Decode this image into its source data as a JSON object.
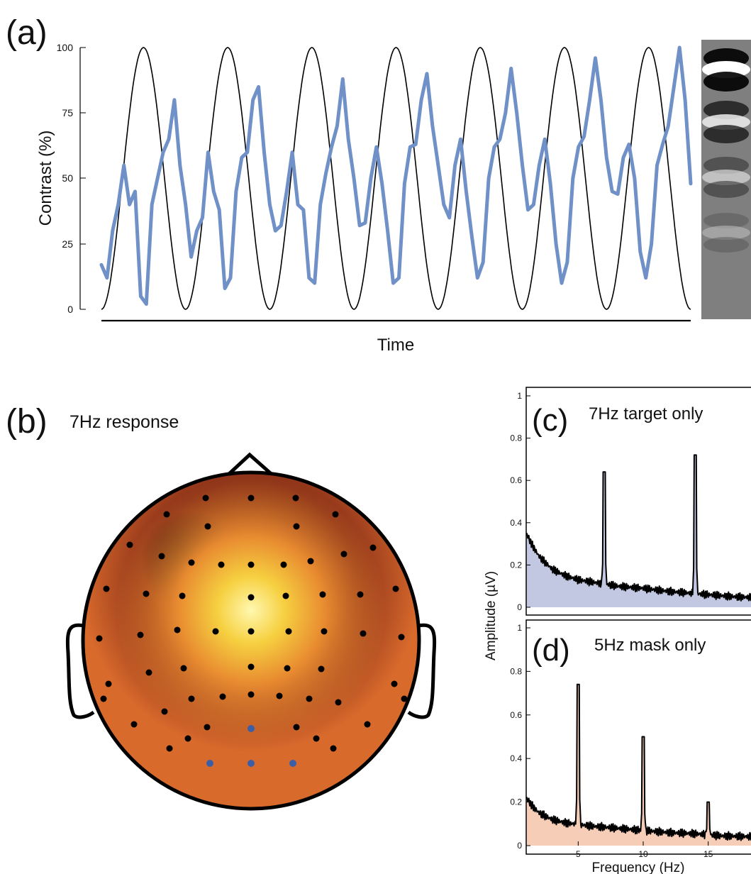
{
  "panel_a": {
    "letter": "(a)",
    "ylabel": "Contrast (%)",
    "xlabel": "Time",
    "ticks": [
      "0",
      "25",
      "50",
      "75",
      "100"
    ]
  },
  "panel_b": {
    "letter": "(b)",
    "title": "7Hz response"
  },
  "panel_c": {
    "letter": "(c)",
    "title": "7Hz target only"
  },
  "panel_d": {
    "letter": "(d)",
    "title": "5Hz mask only"
  },
  "shared": {
    "ylabel": "Amplitude (µV)",
    "xlabel": "Frequency (Hz)"
  },
  "colors": {
    "trace_blue": "#7090c8",
    "fill_c": "#c2c8e2",
    "fill_d": "#f6cdb6",
    "electrode_highlight": "#3a5fa8"
  },
  "chart_data": [
    {
      "type": "line",
      "panel": "(a)",
      "xlabel": "Time",
      "ylabel": "Contrast (%)",
      "ylim": [
        0,
        100
      ],
      "y_ticks": [
        0,
        25,
        50,
        75,
        100
      ],
      "series": [
        {
          "description": "sinusoidal target contrast",
          "cycles": 7,
          "min": 0,
          "max": 100,
          "color": "#000000"
        },
        {
          "description": "tracked contrast",
          "color": "#7090c8",
          "y": [
            17,
            12,
            30,
            40,
            55,
            40,
            45,
            5,
            2,
            40,
            50,
            60,
            65,
            80,
            55,
            40,
            20,
            30,
            35,
            60,
            45,
            38,
            8,
            12,
            45,
            58,
            60,
            80,
            85,
            60,
            40,
            30,
            32,
            45,
            60,
            40,
            38,
            12,
            10,
            40,
            52,
            62,
            70,
            88,
            65,
            50,
            32,
            33,
            50,
            62,
            48,
            30,
            10,
            12,
            48,
            62,
            63,
            80,
            90,
            70,
            55,
            40,
            35,
            55,
            65,
            45,
            28,
            12,
            18,
            50,
            62,
            65,
            75,
            92,
            75,
            55,
            38,
            40,
            55,
            65,
            48,
            25,
            10,
            18,
            50,
            62,
            66,
            80,
            96,
            80,
            58,
            45,
            44,
            58,
            63,
            50,
            22,
            12,
            25,
            55,
            63,
            70,
            85,
            100,
            80,
            48
          ]
        }
      ]
    },
    {
      "type": "area",
      "panel": "(c)",
      "title": "7Hz target only",
      "ylabel": "Amplitude (µV)",
      "ylim": [
        0,
        1
      ],
      "y_ticks": [
        0,
        0.2,
        0.4,
        0.6,
        0.8,
        1
      ],
      "xlim": [
        1,
        19
      ],
      "peaks": [
        {
          "x": 7,
          "y": 0.64
        },
        {
          "x": 14,
          "y": 0.72
        }
      ],
      "baseline_x": [
        1,
        1.5,
        2,
        3,
        4,
        5,
        6,
        8,
        10,
        12,
        13,
        15,
        17,
        19
      ],
      "baseline_y": [
        0.35,
        0.29,
        0.24,
        0.18,
        0.15,
        0.13,
        0.12,
        0.1,
        0.09,
        0.075,
        0.07,
        0.06,
        0.05,
        0.045
      ]
    },
    {
      "type": "area",
      "panel": "(d)",
      "title": "5Hz mask only",
      "xlabel": "Frequency (Hz)",
      "ylabel": "Amplitude (µV)",
      "ylim": [
        0,
        1
      ],
      "y_ticks": [
        0,
        0.2,
        0.4,
        0.6,
        0.8,
        1
      ],
      "xlim": [
        1,
        19
      ],
      "x_ticks": [
        5,
        10,
        15
      ],
      "peaks": [
        {
          "x": 5,
          "y": 0.74
        },
        {
          "x": 10,
          "y": 0.5
        },
        {
          "x": 15,
          "y": 0.2
        }
      ],
      "baseline_x": [
        1,
        1.5,
        2,
        3,
        4,
        6,
        8,
        10,
        12,
        14,
        16,
        19
      ],
      "baseline_y": [
        0.22,
        0.18,
        0.15,
        0.12,
        0.105,
        0.09,
        0.08,
        0.07,
        0.06,
        0.055,
        0.045,
        0.04
      ]
    }
  ]
}
